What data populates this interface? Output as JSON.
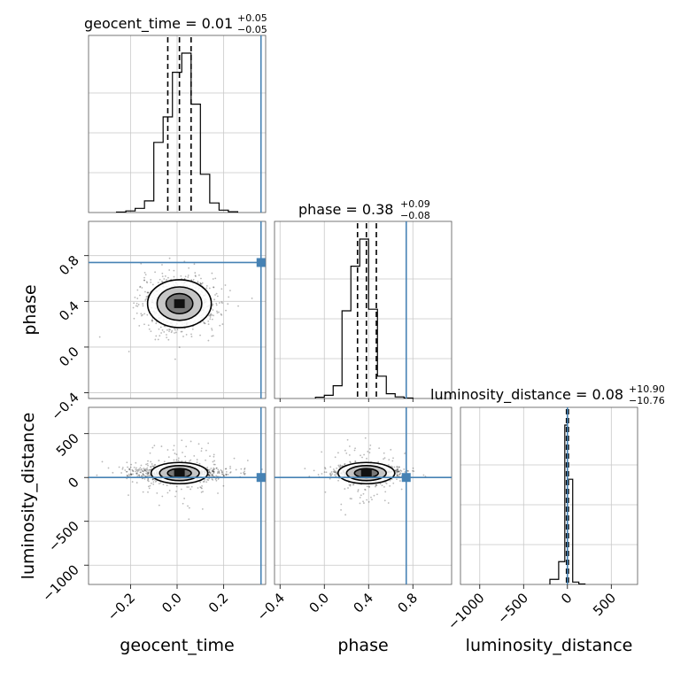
{
  "chart_data": {
    "type": "scatter",
    "variant": "corner-plot",
    "parameters": [
      "geocent_time",
      "phase",
      "luminosity_distance"
    ],
    "titles": {
      "geocent_time": {
        "name": "geocent_time",
        "median": "0.01",
        "plus": "+0.05",
        "minus": "−0.05"
      },
      "phase": {
        "name": "phase",
        "median": "0.38",
        "plus": "+0.09",
        "minus": "−0.08"
      },
      "luminosity_distance": {
        "name": "luminosity_distance",
        "median": "0.08",
        "plus": "+10.90",
        "minus": "−10.76"
      }
    },
    "truth": {
      "geocent_time": 0.36,
      "phase": 0.74,
      "luminosity_distance": 0
    },
    "truth_color": "#4682b4",
    "axes": {
      "geocent_time": {
        "range": [
          -0.38,
          0.38
        ],
        "ticks": [
          -0.2,
          0.0,
          0.2
        ],
        "tick_labels": [
          "−0.2",
          "0.0",
          "0.2"
        ]
      },
      "phase": {
        "range": [
          -0.45,
          1.15
        ],
        "ticks": [
          -0.4,
          0.0,
          0.4,
          0.8
        ],
        "tick_labels": [
          "−0.4",
          "0.0",
          "0.4",
          "0.8"
        ]
      },
      "luminosity_distance": {
        "range": [
          -1220,
          800
        ],
        "ticks": [
          -1000,
          -500,
          0,
          500
        ],
        "tick_labels": [
          "−1000",
          "−500",
          "0",
          "500"
        ]
      }
    },
    "phase_y_range": [
      -0.45,
      1.1
    ],
    "lumdist_y_range": [
      -1220,
      800
    ],
    "marginals": {
      "geocent_time": {
        "bins": [
          -0.26,
          -0.22,
          -0.18,
          -0.14,
          -0.1,
          -0.06,
          -0.02,
          0.02,
          0.06,
          0.1,
          0.14,
          0.18,
          0.22,
          0.26
        ],
        "counts": [
          0.3,
          1.0,
          2.6,
          7.3,
          44.0,
          60.0,
          88.0,
          100.0,
          68.0,
          24.0,
          6.0,
          1.5,
          0.5
        ]
      },
      "phase": {
        "bins": [
          -0.08,
          0.0,
          0.08,
          0.16,
          0.24,
          0.32,
          0.4,
          0.48,
          0.56,
          0.64,
          0.72,
          0.8
        ],
        "counts": [
          0.8,
          2.0,
          8.0,
          55.0,
          83.0,
          100.0,
          56.0,
          14.0,
          3.0,
          1.0,
          0.3
        ]
      },
      "luminosity_distance": {
        "bins": [
          -200,
          -100,
          -30,
          0,
          60,
          130,
          200
        ],
        "counts": [
          3.2,
          14.3,
          100.0,
          66.0,
          1.5,
          0.3
        ]
      }
    },
    "quantiles": {
      "geocent_time": [
        -0.04,
        0.01,
        0.06
      ],
      "phase": [
        0.3,
        0.38,
        0.47
      ],
      "luminosity_distance": [
        -10.7,
        0.08,
        11.0
      ]
    },
    "posterior_center": {
      "geocent_time": 0.01,
      "phase": 0.38,
      "luminosity_distance": 50
    },
    "posterior_spread": {
      "geocent_time": 0.08,
      "phase": 0.12,
      "luminosity_distance": 40
    },
    "grid": true,
    "legend": "none"
  }
}
